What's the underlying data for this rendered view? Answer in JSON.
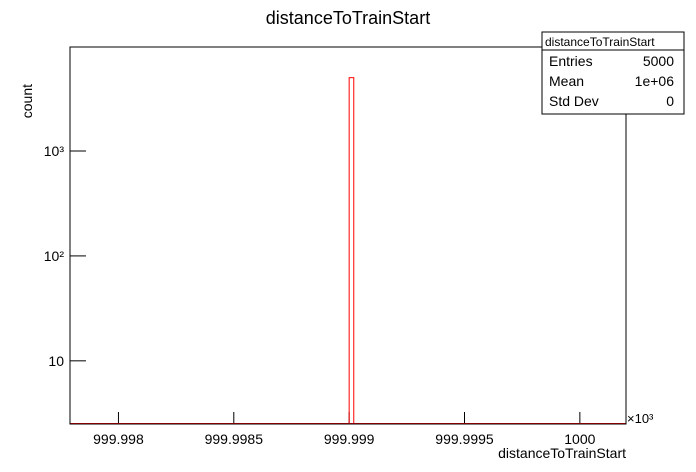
{
  "chart_data": {
    "type": "histogram",
    "title": "distanceToTrainStart",
    "x_label": "distanceToTrainStart",
    "y_label": "count",
    "x_exponent": "×10³",
    "bins": [
      999.999,
      999.99902
    ],
    "values": [
      5000
    ],
    "color": "#ff0000",
    "xlim": [
      999.99779,
      1000.0002
    ],
    "xticks": [
      999.998,
      999.9985,
      999.999,
      999.9995,
      1000
    ],
    "ylim": [
      2.5,
      9800
    ],
    "log_y": true,
    "yticks": [
      10,
      {
        "value": 100,
        "label": "10²"
      },
      {
        "value": 1000,
        "label": "10³"
      }
    ],
    "stats_box": {
      "title": "distanceToTrainStart",
      "rows": [
        [
          "Entries",
          "5000"
        ],
        [
          "Mean",
          "1e+06"
        ],
        [
          "Std Dev",
          "0"
        ]
      ]
    }
  }
}
